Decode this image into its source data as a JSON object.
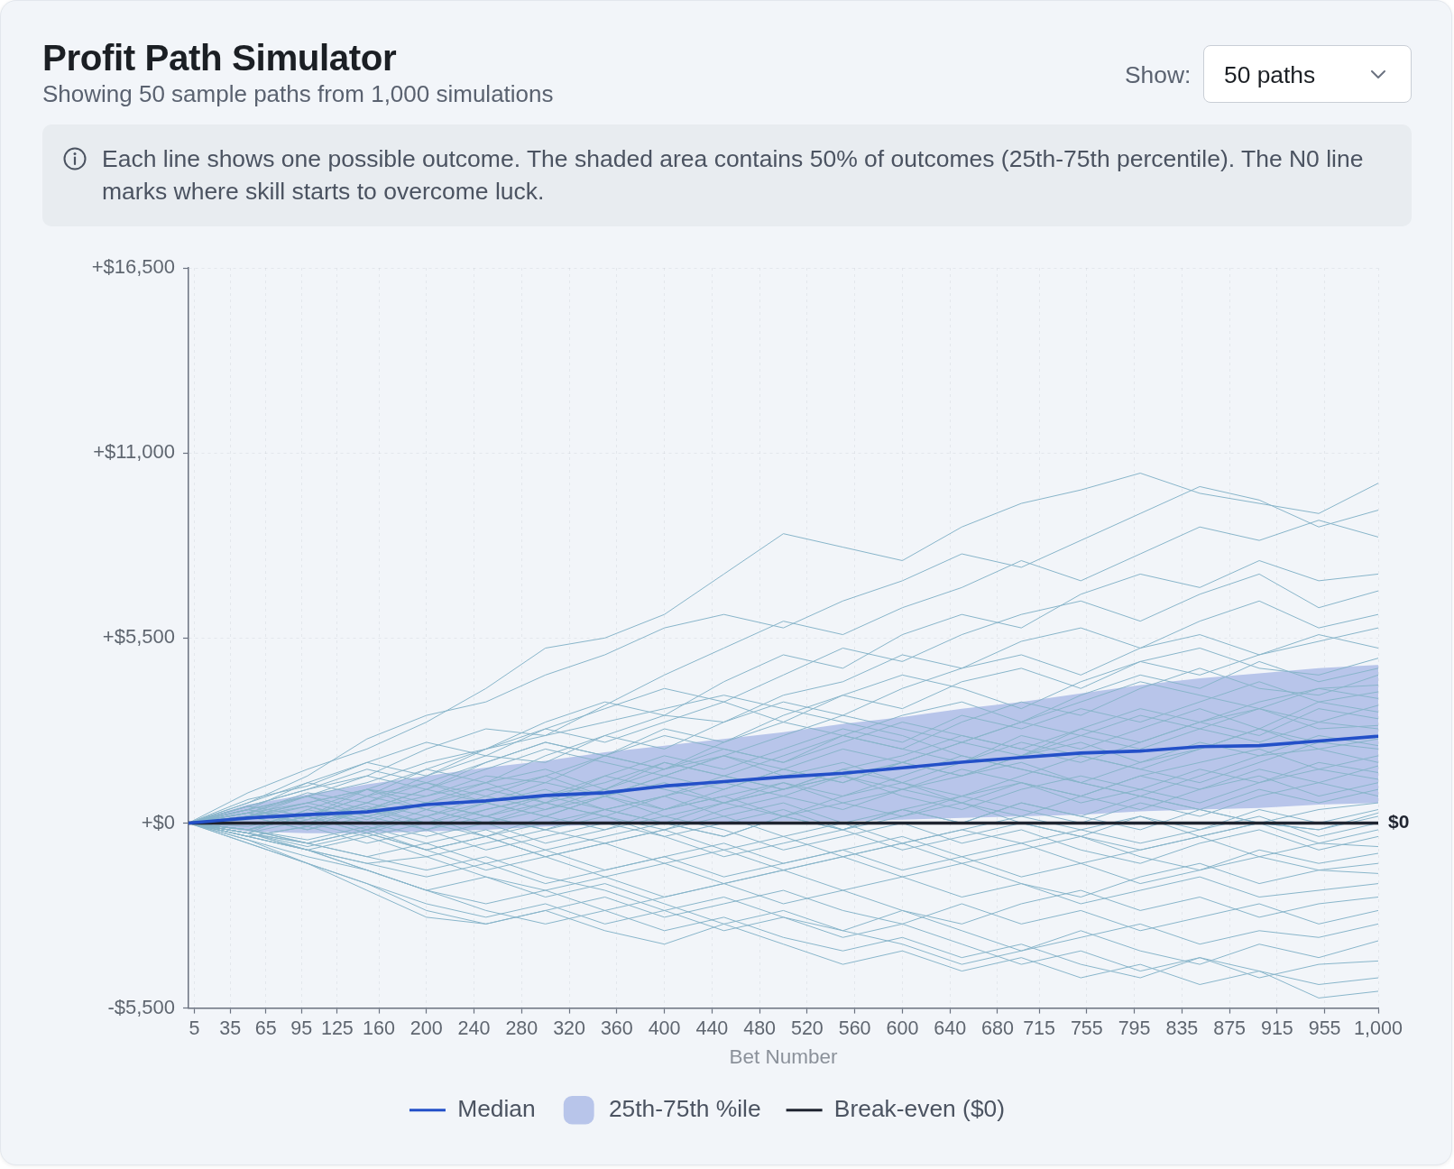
{
  "chart_data": {
    "type": "line",
    "title": "Profit Path Simulator",
    "subtitle": "Showing 50 sample paths from 1,000 simulations",
    "xlabel": "Bet Number",
    "annotations": [
      "Show:",
      "50 paths",
      "Each line shows one possible outcome. The shaded area contains 50% of outcomes (25th-75th percentile). The N0 line marks where skill starts to overcome luck.",
      {
        "text": "$0",
        "x": 1000,
        "y": 0
      }
    ],
    "x": [
      0,
      50,
      100,
      150,
      200,
      250,
      300,
      350,
      400,
      450,
      500,
      550,
      600,
      650,
      700,
      750,
      800,
      850,
      900,
      950,
      1000
    ],
    "xlim": [
      0,
      1000
    ],
    "xticks": [
      5,
      35,
      65,
      95,
      125,
      160,
      200,
      240,
      280,
      320,
      360,
      400,
      440,
      480,
      520,
      560,
      600,
      640,
      680,
      715,
      755,
      795,
      835,
      875,
      915,
      955,
      {
        "value": 1000,
        "label": "1,000"
      }
    ],
    "ylim": [
      -5500,
      16500
    ],
    "yticks": [
      {
        "value": -5500,
        "label": "-$5,500"
      },
      {
        "value": 0,
        "label": "+$0"
      },
      {
        "value": 5500,
        "label": "+$5,500"
      },
      {
        "value": 11000,
        "label": "+$11,000"
      },
      {
        "value": 16500,
        "label": "+$16,500"
      }
    ],
    "grid": true,
    "legend": "bottom",
    "marker": "none",
    "series": [
      {
        "name": "Median",
        "type": "line",
        "color": "#2350c8",
        "values": [
          0,
          150,
          250,
          330,
          550,
          660,
          820,
          900,
          1100,
          1230,
          1370,
          1480,
          1640,
          1810,
          1950,
          2080,
          2140,
          2270,
          2300,
          2440,
          2580
        ]
      },
      {
        "name": "25th-75th %ile",
        "type": "area",
        "color": "#b8c5ea",
        "values": [
          null,
          null,
          null,
          null,
          null,
          null,
          null,
          null,
          null,
          null,
          null,
          null,
          null,
          null,
          null,
          null,
          null,
          null,
          null,
          null,
          null
        ],
        "lower": [
          0,
          -250,
          -300,
          -300,
          -250,
          -200,
          -100,
          -50,
          0,
          0,
          50,
          50,
          100,
          150,
          200,
          250,
          350,
          400,
          450,
          550,
          600
        ],
        "upper": [
          0,
          550,
          850,
          1150,
          1400,
          1650,
          1850,
          2100,
          2300,
          2500,
          2700,
          2950,
          3150,
          3400,
          3600,
          3850,
          4100,
          4300,
          4450,
          4600,
          4700
        ]
      },
      {
        "name": "Break-even ($0)",
        "type": "line",
        "color": "#1f2430",
        "values": [
          0,
          0,
          0,
          0,
          0,
          0,
          0,
          0,
          0,
          0,
          0,
          0,
          0,
          0,
          0,
          0,
          0,
          0,
          0,
          0,
          0
        ]
      },
      {
        "color": "#88b5ca",
        "values": [
          0,
          900,
          1600,
          2200,
          3000,
          4000,
          5200,
          5500,
          6200,
          7400,
          8600,
          8200,
          7800,
          8800,
          9500,
          9900,
          10400,
          9800,
          9500,
          9200,
          10100
        ]
      },
      {
        "color": "#88b5ca",
        "values": [
          0,
          600,
          1400,
          2500,
          3200,
          3600,
          4400,
          5000,
          5800,
          6200,
          5800,
          6600,
          7200,
          8000,
          7600,
          8400,
          9200,
          10000,
          9600,
          8800,
          9300
        ]
      },
      {
        "color": "#88b5ca",
        "values": [
          0,
          500,
          1000,
          1400,
          2200,
          2800,
          2600,
          3500,
          4400,
          5200,
          6000,
          5600,
          6400,
          7000,
          7800,
          7200,
          8000,
          8800,
          8400,
          9000,
          8500
        ]
      },
      {
        "color": "#88b5ca",
        "values": [
          0,
          400,
          1200,
          1800,
          1400,
          2200,
          3000,
          3600,
          3200,
          4200,
          5000,
          4600,
          5600,
          6200,
          5800,
          6800,
          7400,
          7000,
          7800,
          7200,
          7400
        ]
      },
      {
        "color": "#88b5ca",
        "values": [
          0,
          700,
          1100,
          1800,
          2400,
          2000,
          2800,
          3400,
          4000,
          3600,
          4400,
          5200,
          4800,
          5600,
          6200,
          6600,
          6000,
          6800,
          7400,
          6400,
          6900
        ]
      },
      {
        "color": "#88b5ca",
        "values": [
          0,
          300,
          900,
          600,
          1400,
          2000,
          1800,
          2600,
          3200,
          3000,
          3800,
          4200,
          5000,
          4600,
          5400,
          5800,
          5200,
          6000,
          6600,
          5800,
          6200
        ]
      },
      {
        "color": "#88b5ca",
        "values": [
          0,
          500,
          200,
          1000,
          1600,
          1200,
          2000,
          2600,
          2200,
          3000,
          3600,
          3200,
          4000,
          4600,
          5000,
          4400,
          5200,
          5600,
          5000,
          5400,
          5800
        ]
      },
      {
        "color": "#88b5ca",
        "values": [
          0,
          200,
          800,
          1400,
          1000,
          1800,
          2400,
          2000,
          2800,
          2400,
          3200,
          3800,
          3400,
          4200,
          4600,
          4000,
          4800,
          4400,
          5000,
          5600,
          5200
        ]
      },
      {
        "color": "#88b5ca",
        "values": [
          0,
          600,
          1200,
          800,
          1600,
          2200,
          2800,
          2400,
          3000,
          3600,
          3000,
          3800,
          4400,
          4000,
          3400,
          4200,
          4800,
          5200,
          4600,
          4400,
          4900
        ]
      },
      {
        "color": "#88b5ca",
        "values": [
          0,
          -300,
          400,
          1000,
          800,
          1400,
          1200,
          2000,
          2600,
          2200,
          1800,
          2600,
          3200,
          3600,
          3000,
          3800,
          4400,
          4000,
          4800,
          4200,
          4600
        ]
      },
      {
        "color": "#88b5ca",
        "values": [
          0,
          400,
          0,
          600,
          1200,
          800,
          1400,
          2000,
          1600,
          2400,
          3000,
          2600,
          2200,
          3000,
          3600,
          3200,
          4000,
          4600,
          4000,
          3800,
          4400
        ]
      },
      {
        "color": "#88b5ca",
        "values": [
          0,
          300,
          800,
          400,
          1000,
          1600,
          2200,
          1800,
          1400,
          2000,
          2600,
          3200,
          2800,
          2400,
          3000,
          3600,
          4200,
          3800,
          3400,
          4000,
          4100
        ]
      },
      {
        "color": "#88b5ca",
        "values": [
          0,
          -200,
          200,
          800,
          400,
          1000,
          600,
          1400,
          2000,
          1600,
          2200,
          2800,
          2400,
          3200,
          2800,
          3400,
          3000,
          3600,
          4200,
          3600,
          3900
        ]
      },
      {
        "color": "#88b5ca",
        "values": [
          0,
          500,
          1000,
          1600,
          1200,
          1800,
          2400,
          2000,
          1600,
          2200,
          1800,
          2400,
          3000,
          2600,
          2200,
          2800,
          3400,
          3000,
          3600,
          4000,
          3700
        ]
      },
      {
        "color": "#88b5ca",
        "values": [
          0,
          200,
          -200,
          400,
          0,
          600,
          1200,
          800,
          1400,
          2000,
          1600,
          1200,
          1800,
          2400,
          3000,
          2600,
          3200,
          2800,
          3400,
          3000,
          3500
        ]
      },
      {
        "color": "#88b5ca",
        "values": [
          0,
          400,
          800,
          200,
          600,
          1200,
          1600,
          1000,
          1800,
          1400,
          2000,
          2600,
          2200,
          1800,
          2600,
          2200,
          2800,
          3400,
          2800,
          3600,
          3300
        ]
      },
      {
        "color": "#88b5ca",
        "values": [
          0,
          -400,
          -100,
          400,
          1000,
          600,
          200,
          800,
          1400,
          1000,
          1600,
          2200,
          1800,
          2400,
          2000,
          2800,
          2400,
          3000,
          2600,
          3400,
          3100
        ]
      },
      {
        "color": "#88b5ca",
        "values": [
          0,
          300,
          600,
          1000,
          600,
          200,
          800,
          1200,
          1800,
          1400,
          1000,
          1600,
          2000,
          2600,
          2200,
          1800,
          2400,
          3000,
          3400,
          2800,
          2900
        ]
      },
      {
        "color": "#88b5ca",
        "values": [
          0,
          -200,
          400,
          0,
          600,
          1000,
          1400,
          800,
          400,
          1000,
          1600,
          1200,
          1800,
          1400,
          2000,
          2600,
          2200,
          2800,
          2400,
          3000,
          2800
        ]
      },
      {
        "color": "#88b5ca",
        "values": [
          0,
          400,
          100,
          600,
          200,
          800,
          400,
          1000,
          1600,
          2000,
          1400,
          1800,
          1200,
          1800,
          2400,
          2000,
          1600,
          2200,
          2800,
          2400,
          2600
        ]
      },
      {
        "color": "#88b5ca",
        "values": [
          0,
          -300,
          -600,
          -200,
          400,
          0,
          600,
          200,
          800,
          1200,
          800,
          1400,
          1800,
          1400,
          2000,
          2400,
          1800,
          2200,
          2800,
          2200,
          2500
        ]
      },
      {
        "color": "#88b5ca",
        "values": [
          0,
          200,
          600,
          200,
          -200,
          400,
          800,
          1400,
          1000,
          600,
          1200,
          800,
          1400,
          2000,
          1600,
          1200,
          1800,
          2400,
          2000,
          2600,
          2300
        ]
      },
      {
        "color": "#88b5ca",
        "values": [
          0,
          500,
          200,
          800,
          1200,
          600,
          1000,
          400,
          800,
          1400,
          1000,
          1600,
          1200,
          800,
          1400,
          2000,
          1600,
          1200,
          1800,
          2400,
          2200
        ]
      },
      {
        "color": "#88b5ca",
        "values": [
          0,
          -200,
          200,
          -300,
          200,
          600,
          200,
          800,
          1200,
          600,
          1000,
          1400,
          1000,
          1600,
          1200,
          800,
          1400,
          1800,
          2200,
          1600,
          2000
        ]
      },
      {
        "color": "#88b5ca",
        "values": [
          0,
          300,
          -100,
          400,
          800,
          1200,
          600,
          1000,
          400,
          800,
          1200,
          600,
          1000,
          1400,
          1800,
          1200,
          800,
          1400,
          2000,
          2200,
          1800
        ]
      },
      {
        "color": "#88b5ca",
        "values": [
          0,
          -400,
          -800,
          -400,
          -1000,
          -600,
          -200,
          200,
          -200,
          400,
          800,
          400,
          1000,
          600,
          1200,
          800,
          1400,
          1000,
          1600,
          1200,
          1700
        ]
      },
      {
        "color": "#88b5ca",
        "values": [
          0,
          200,
          600,
          1000,
          400,
          0,
          400,
          800,
          200,
          600,
          1000,
          1400,
          800,
          400,
          1000,
          1400,
          1000,
          1600,
          1200,
          1800,
          1500
        ]
      },
      {
        "color": "#88b5ca",
        "values": [
          0,
          -100,
          300,
          -200,
          200,
          -400,
          0,
          400,
          800,
          200,
          600,
          0,
          400,
          800,
          1200,
          600,
          1000,
          600,
          1200,
          1600,
          1300
        ]
      },
      {
        "color": "#88b5ca",
        "values": [
          0,
          300,
          0,
          -400,
          0,
          400,
          800,
          400,
          0,
          600,
          200,
          800,
          1200,
          600,
          200,
          800,
          400,
          1000,
          1400,
          800,
          1200
        ]
      },
      {
        "color": "#88b5ca",
        "values": [
          0,
          -300,
          100,
          500,
          0,
          -400,
          200,
          -200,
          400,
          800,
          200,
          -200,
          400,
          0,
          600,
          200,
          800,
          400,
          1000,
          600,
          1000
        ]
      },
      {
        "color": "#88b5ca",
        "values": [
          0,
          200,
          500,
          100,
          600,
          200,
          -200,
          400,
          0,
          -400,
          200,
          600,
          200,
          800,
          400,
          0,
          600,
          200,
          800,
          1200,
          800
        ]
      },
      {
        "color": "#88b5ca",
        "values": [
          0,
          -200,
          -500,
          -100,
          -600,
          -200,
          -800,
          -400,
          0,
          -400,
          200,
          -200,
          400,
          0,
          600,
          200,
          -200,
          400,
          0,
          400,
          600
        ]
      },
      {
        "color": "#88b5ca",
        "values": [
          0,
          300,
          0,
          400,
          -200,
          200,
          600,
          200,
          -400,
          0,
          400,
          -200,
          200,
          600,
          0,
          -400,
          200,
          -200,
          400,
          0,
          400
        ]
      },
      {
        "color": "#88b5ca",
        "values": [
          0,
          -300,
          -700,
          -300,
          -800,
          -400,
          -1000,
          -600,
          -200,
          -800,
          -400,
          -1000,
          -600,
          -200,
          -600,
          -200,
          200,
          -400,
          0,
          -200,
          200
        ]
      },
      {
        "color": "#88b5ca",
        "values": [
          0,
          200,
          -200,
          200,
          600,
          200,
          -200,
          -600,
          -200,
          200,
          -400,
          0,
          -600,
          -200,
          200,
          -200,
          -600,
          -200,
          200,
          -400,
          0
        ]
      },
      {
        "color": "#88b5ca",
        "values": [
          0,
          -400,
          -100,
          -600,
          -200,
          -800,
          -400,
          0,
          -400,
          -1000,
          -600,
          -200,
          -800,
          -400,
          0,
          -400,
          -800,
          -400,
          0,
          -600,
          -200
        ]
      },
      {
        "color": "#88b5ca",
        "values": [
          0,
          100,
          500,
          0,
          -400,
          0,
          -600,
          -200,
          200,
          -200,
          -800,
          -400,
          0,
          -600,
          -200,
          -800,
          -1200,
          -600,
          -200,
          -800,
          -400
        ]
      },
      {
        "color": "#88b5ca",
        "values": [
          0,
          -300,
          -600,
          -1000,
          -600,
          -1200,
          -800,
          -1400,
          -1000,
          -600,
          -1200,
          -800,
          -400,
          -1000,
          -600,
          -1200,
          -800,
          -400,
          -1000,
          -600,
          -700
        ]
      },
      {
        "color": "#88b5ca",
        "values": [
          0,
          -200,
          200,
          -300,
          -800,
          -400,
          -1000,
          -600,
          -1200,
          -800,
          -1400,
          -1000,
          -600,
          -1200,
          -800,
          -400,
          -1000,
          -1400,
          -800,
          -1200,
          -900
        ]
      },
      {
        "color": "#88b5ca",
        "values": [
          0,
          -400,
          -800,
          -1200,
          -1600,
          -1200,
          -1800,
          -1400,
          -1000,
          -1600,
          -1200,
          -800,
          -1400,
          -1000,
          -1600,
          -1200,
          -1800,
          -1400,
          -1000,
          -1400,
          -1200
        ]
      },
      {
        "color": "#88b5ca",
        "values": [
          0,
          -200,
          -600,
          -200,
          -800,
          -1400,
          -1000,
          -1600,
          -1200,
          -1800,
          -1400,
          -1000,
          -1600,
          -1200,
          -1800,
          -2200,
          -1600,
          -1200,
          -1800,
          -1400,
          -1500
        ]
      },
      {
        "color": "#88b5ca",
        "values": [
          0,
          -500,
          -1000,
          -1400,
          -2000,
          -2400,
          -2000,
          -1600,
          -2200,
          -1800,
          -1400,
          -2000,
          -1600,
          -2200,
          -1800,
          -2400,
          -2000,
          -1600,
          -2200,
          -2000,
          -1800
        ]
      },
      {
        "color": "#88b5ca",
        "values": [
          0,
          -300,
          -800,
          -1200,
          -1000,
          -1600,
          -2000,
          -2600,
          -2200,
          -1800,
          -2400,
          -2000,
          -2600,
          -3000,
          -2400,
          -2000,
          -2600,
          -2200,
          -2800,
          -2400,
          -2200
        ]
      },
      {
        "color": "#88b5ca",
        "values": [
          0,
          -600,
          -1200,
          -1800,
          -2600,
          -3000,
          -2600,
          -2200,
          -2800,
          -2400,
          -2000,
          -2600,
          -3000,
          -2400,
          -3000,
          -2600,
          -3200,
          -2800,
          -2400,
          -3000,
          -2600
        ]
      },
      {
        "color": "#88b5ca",
        "values": [
          0,
          -200,
          -600,
          -1000,
          -1400,
          -1000,
          -1600,
          -2000,
          -2600,
          -2200,
          -2800,
          -3200,
          -2600,
          -3200,
          -3800,
          -3400,
          -3000,
          -3600,
          -3200,
          -3400,
          -3000
        ]
      },
      {
        "color": "#88b5ca",
        "values": [
          0,
          -400,
          -800,
          -1400,
          -2000,
          -1600,
          -2200,
          -1800,
          -2400,
          -3000,
          -2600,
          -3200,
          -3600,
          -4200,
          -3800,
          -3200,
          -3800,
          -4200,
          -3600,
          -4000,
          -3500
        ]
      },
      {
        "color": "#88b5ca",
        "values": [
          0,
          -500,
          -1200,
          -1800,
          -2400,
          -2800,
          -2400,
          -3000,
          -2600,
          -3200,
          -2800,
          -3400,
          -3000,
          -3600,
          -4200,
          -3800,
          -4400,
          -4000,
          -4600,
          -4200,
          -4100
        ]
      },
      {
        "color": "#88b5ca",
        "values": [
          0,
          -300,
          -800,
          -1400,
          -2000,
          -2600,
          -3000,
          -2600,
          -3200,
          -2800,
          -3400,
          -3800,
          -3400,
          -4000,
          -3600,
          -4200,
          -4600,
          -4000,
          -4400,
          -4800,
          -4600
        ]
      },
      {
        "color": "#88b5ca",
        "values": [
          0,
          -600,
          -1200,
          -2000,
          -2800,
          -3000,
          -2600,
          -3200,
          -3600,
          -3000,
          -3600,
          -4200,
          -3800,
          -4400,
          -4000,
          -4600,
          -4200,
          -4800,
          -4400,
          -5200,
          -5000
        ]
      },
      {
        "color": "#88b5ca",
        "values": [
          0,
          400,
          800,
          1200,
          1800,
          2200,
          2600,
          3000,
          3400,
          3800,
          3400,
          3000,
          2600,
          2000,
          1600,
          1200,
          800,
          400,
          0,
          -200,
          300
        ]
      }
    ]
  }
}
